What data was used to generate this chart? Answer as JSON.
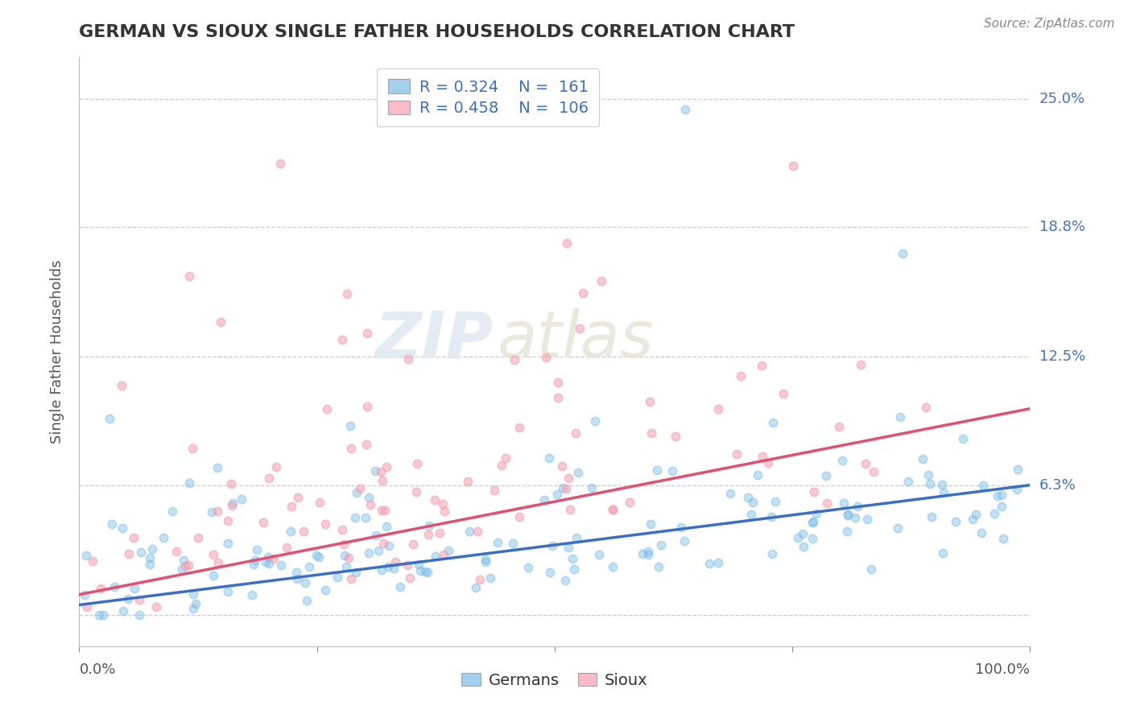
{
  "title": "GERMAN VS SIOUX SINGLE FATHER HOUSEHOLDS CORRELATION CHART",
  "source": "Source: ZipAtlas.com",
  "ylabel": "Single Father Households",
  "right_yticks": [
    0.0,
    0.063,
    0.125,
    0.188,
    0.25
  ],
  "right_yticklabels": [
    "",
    "6.3%",
    "12.5%",
    "18.8%",
    "25.0%"
  ],
  "legend_german": {
    "R": "0.324",
    "N": "161"
  },
  "legend_sioux": {
    "R": "0.458",
    "N": "106"
  },
  "german_color": "#7BBDE8",
  "sioux_color": "#F4A0B0",
  "german_line_color": "#3A6FC4",
  "sioux_line_color": "#E05070",
  "watermark_text": "ZIP",
  "watermark_text2": "atlas",
  "xlim": [
    0,
    1
  ],
  "ylim": [
    -0.015,
    0.27
  ],
  "german_seed": 42,
  "sioux_seed": 77,
  "german_R": 0.324,
  "german_N": 161,
  "sioux_R": 0.458,
  "sioux_N": 106,
  "background_color": "#ffffff",
  "grid_color": "#cccccc",
  "german_trend_start": 0.005,
  "german_trend_end": 0.063,
  "sioux_trend_start": 0.01,
  "sioux_trend_end": 0.1
}
